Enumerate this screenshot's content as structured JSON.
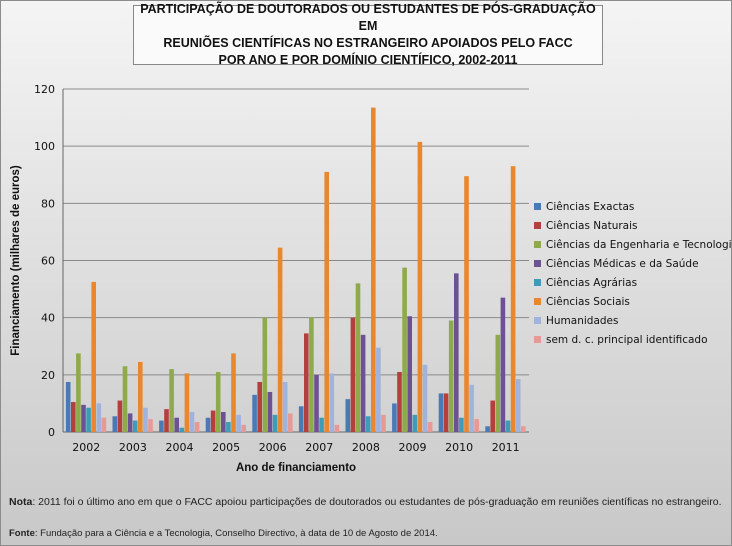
{
  "title": {
    "line1": "PARTICIPAÇÃO DE DOUTORADOS OU ESTUDANTES DE PÓS-GRADUAÇÃO EM",
    "line2": "REUNIÕES CIENTÍFICAS NO ESTRANGEIRO APOIADOS PELO FACC",
    "line3": "POR ANO E POR DOMÍNIO CIENTÍFICO, 2002-2011"
  },
  "note": {
    "label": "Nota",
    "text": ": 2011 foi o último ano em que o FACC apoiou participações de doutorados ou estudantes de pós-graduação em reuniões científicas no estrangeiro."
  },
  "source": {
    "label": "Fonte",
    "text": ": Fundação para a Ciência e a Tecnologia, Conselho Directivo, à data de 10 de Agosto de 2014."
  },
  "chart_data": {
    "type": "bar",
    "title": "PARTICIPAÇÃO DE DOUTORADOS OU ESTUDANTES DE PÓS-GRADUAÇÃO EM REUNIÕES CIENTÍFICAS NO ESTRANGEIRO APOIADOS PELO FACC POR ANO E POR DOMÍNIO CIENTÍFICO, 2002-2011",
    "xlabel": "Ano de financiamento",
    "ylabel": "Financiamento (milhares de euros)",
    "ylim": [
      0,
      120
    ],
    "yticks": [
      0,
      20,
      40,
      60,
      80,
      100,
      120
    ],
    "grid": true,
    "legend_position": "right",
    "categories": [
      "2002",
      "2003",
      "2004",
      "2005",
      "2006",
      "2007",
      "2008",
      "2009",
      "2010",
      "2011"
    ],
    "series": [
      {
        "name": "Ciências Exactas",
        "color": "#4a7ab5",
        "values": [
          17.5,
          5.5,
          4,
          5,
          13,
          9,
          11.5,
          10,
          13.5,
          2
        ]
      },
      {
        "name": "Ciências Naturais",
        "color": "#b3403c",
        "values": [
          10.5,
          11,
          8,
          7.5,
          17.5,
          34.5,
          40,
          21,
          13.5,
          11
        ]
      },
      {
        "name": "Ciências da Engenharia e Tecnologias",
        "color": "#8faa4a",
        "values": [
          27.5,
          23,
          22,
          21,
          40,
          40,
          52,
          57.5,
          39,
          34
        ]
      },
      {
        "name": "Ciências Médicas e da Saúde",
        "color": "#6c5292",
        "values": [
          9.5,
          6.5,
          5,
          7,
          14,
          20,
          34,
          40.5,
          55.5,
          47
        ]
      },
      {
        "name": "Ciências Agrárias",
        "color": "#3f9cb5",
        "values": [
          8.5,
          4,
          1.5,
          3.5,
          6,
          5,
          5.5,
          6,
          5,
          4
        ]
      },
      {
        "name": "Ciências Sociais",
        "color": "#e8872d",
        "values": [
          52.5,
          24.5,
          20.5,
          27.5,
          64.5,
          91,
          113.5,
          101.5,
          89.5,
          93
        ]
      },
      {
        "name": "Humanidades",
        "color": "#9fb3dc",
        "values": [
          10,
          8.5,
          7,
          6,
          17.5,
          20.5,
          29.5,
          23.5,
          16.5,
          18.5
        ]
      },
      {
        "name": "sem d. c. principal identificado",
        "color": "#e59a96",
        "values": [
          5,
          4.5,
          3.5,
          2.5,
          6.5,
          2.5,
          6,
          3.5,
          4.5,
          2
        ]
      }
    ]
  }
}
